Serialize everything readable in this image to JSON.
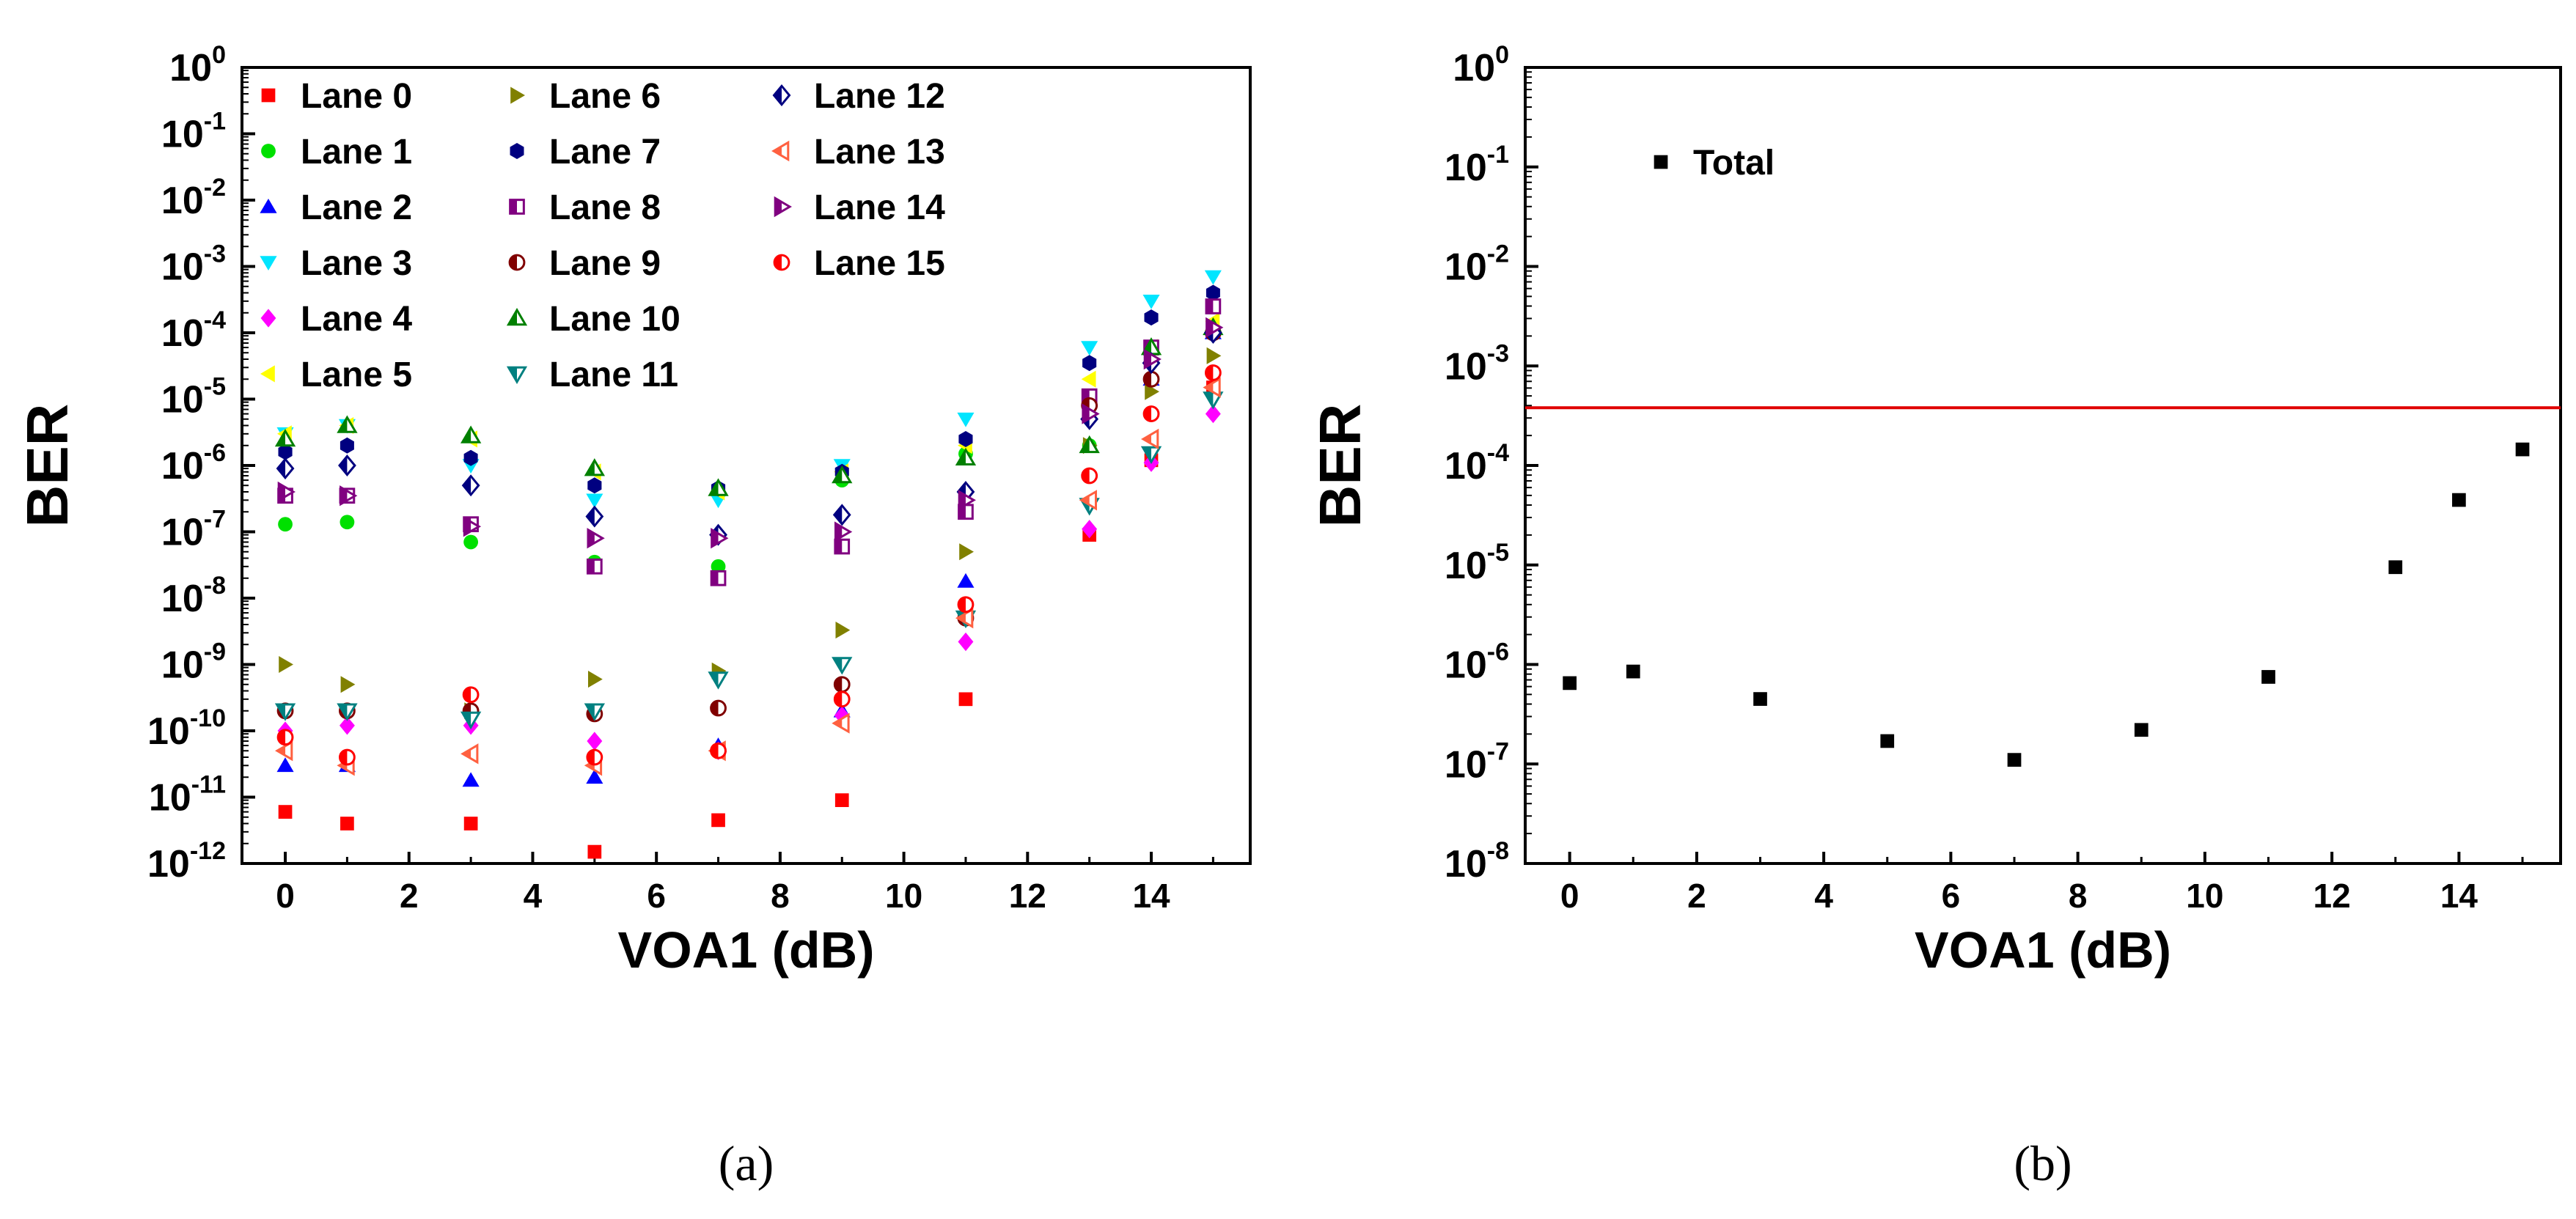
{
  "chart_data": [
    {
      "type": "scatter",
      "panel_label": "(a)",
      "xlabel": "VOA1 (dB)",
      "ylabel": "BER",
      "yscale": "log",
      "xlim": [
        -0.7,
        15.6
      ],
      "ylim_exp": [
        -12,
        0
      ],
      "xticks": [
        0,
        2,
        4,
        6,
        8,
        10,
        12,
        14
      ],
      "yticks_exp": [
        0,
        -1,
        -2,
        -3,
        -4,
        -5,
        -6,
        -7,
        -8,
        -9,
        -10,
        -11,
        -12
      ],
      "legend_location": "top-left, three columns",
      "x": [
        0,
        1,
        3,
        5,
        7,
        9,
        11,
        13,
        14,
        15
      ],
      "series": [
        {
          "name": "Lane 0",
          "marker": "square",
          "color": "#ff0000",
          "values": [
            6e-12,
            4e-12,
            4e-12,
            1.5e-12,
            4.5e-12,
            9e-12,
            3e-10,
            9e-08,
            1.2e-06,
            1.5e-05
          ]
        },
        {
          "name": "Lane 1",
          "marker": "circle",
          "color": "#00e000",
          "values": [
            1.3e-07,
            1.4e-07,
            7e-08,
            3.5e-08,
            3e-08,
            6e-07,
            1.5e-06,
            2e-06,
            2e-05,
            0.0001
          ]
        },
        {
          "name": "Lane 2",
          "marker": "triangle-up",
          "color": "#0000ff",
          "values": [
            3e-11,
            3e-11,
            1.8e-11,
            2e-11,
            6e-11,
            2e-10,
            1.8e-08,
            2e-06,
            2e-05,
            0.0001
          ]
        },
        {
          "name": "Lane 3",
          "marker": "triangle-down",
          "color": "#00e5ff",
          "values": [
            3e-06,
            4e-06,
            1e-06,
            3e-07,
            3e-07,
            1e-06,
            5e-06,
            6e-05,
            0.0003,
            0.0007
          ]
        },
        {
          "name": "Lane 4",
          "marker": "diamond",
          "color": "#ff00ff",
          "values": [
            1e-10,
            1.2e-10,
            1.2e-10,
            7e-11,
            5e-11,
            1.7e-10,
            2.2e-09,
            1.1e-07,
            1.1e-06,
            6e-06
          ]
        },
        {
          "name": "Lane 5",
          "marker": "triangle-left",
          "color": "#ffff00",
          "values": [
            3e-06,
            4e-06,
            2.5e-06,
            8e-07,
            4e-07,
            8e-07,
            2e-06,
            2e-05,
            6e-05,
            0.00015
          ]
        },
        {
          "name": "Lane 6",
          "marker": "triangle-right",
          "color": "#808000",
          "values": [
            1e-09,
            5e-10,
            2e-10,
            6e-10,
            8e-10,
            3.3e-09,
            5e-08,
            2e-06,
            1.3e-05,
            4.5e-05
          ]
        },
        {
          "name": "Lane 7",
          "marker": "hexagon",
          "color": "#000080",
          "values": [
            1.6e-06,
            2e-06,
            1.3e-06,
            5e-07,
            4.5e-07,
            8e-07,
            2.5e-06,
            3.5e-05,
            0.00017,
            0.0004
          ]
        },
        {
          "name": "Lane 8",
          "marker": "half-square",
          "color": "#800080",
          "values": [
            3.5e-07,
            3.5e-07,
            1.3e-07,
            3e-08,
            2e-08,
            6e-08,
            2e-07,
            1.1e-05,
            6e-05,
            0.00025
          ]
        },
        {
          "name": "Lane 9",
          "marker": "half-circle",
          "color": "#800000",
          "values": [
            2e-10,
            2e-10,
            2e-10,
            1.8e-10,
            2.2e-10,
            5e-10,
            5e-09,
            8e-06,
            2e-05,
            0.0001
          ]
        },
        {
          "name": "Lane 10",
          "marker": "triangle-up-half",
          "color": "#008000",
          "values": [
            2.5e-06,
            4e-06,
            2.8e-06,
            9e-07,
            4.5e-07,
            7e-07,
            1.3e-06,
            2e-06,
            6e-05,
            0.00012
          ]
        },
        {
          "name": "Lane 11",
          "marker": "triangle-down-half",
          "color": "#008080",
          "values": [
            2e-10,
            2e-10,
            1.5e-10,
            2e-10,
            6e-10,
            1e-09,
            5e-09,
            2.5e-07,
            1.5e-06,
            1e-05
          ]
        },
        {
          "name": "Lane 12",
          "marker": "diamond-half",
          "color": "#000080",
          "values": [
            9e-07,
            1e-06,
            5e-07,
            1.7e-07,
            9e-08,
            1.8e-07,
            4e-07,
            5e-06,
            3.5e-05,
            0.0001
          ]
        },
        {
          "name": "Lane 13",
          "marker": "triangle-left-half",
          "color": "#ff6040",
          "values": [
            5e-11,
            3e-11,
            4.5e-11,
            3e-11,
            5e-11,
            1.3e-10,
            5e-09,
            3e-07,
            2.5e-06,
            1.5e-05
          ]
        },
        {
          "name": "Lane 14",
          "marker": "triangle-right-half",
          "color": "#800080",
          "values": [
            4e-07,
            3.5e-07,
            1.2e-07,
            8e-08,
            8e-08,
            1e-07,
            3e-07,
            6e-06,
            4e-05,
            0.00012
          ]
        },
        {
          "name": "Lane 15",
          "marker": "circle-half",
          "color": "#ff0000",
          "values": [
            8e-11,
            4e-11,
            3.5e-10,
            4e-11,
            5e-11,
            3e-10,
            8e-09,
            7e-07,
            6e-06,
            2.5e-05
          ]
        }
      ]
    },
    {
      "type": "scatter",
      "panel_label": "(b)",
      "xlabel": "VOA1 (dB)",
      "ylabel": "BER",
      "yscale": "log",
      "xlim": [
        -0.7,
        15.6
      ],
      "ylim_exp": [
        -8,
        0
      ],
      "xticks": [
        0,
        2,
        4,
        6,
        8,
        10,
        12,
        14
      ],
      "yticks_exp": [
        0,
        -1,
        -2,
        -3,
        -4,
        -5,
        -6,
        -7,
        -8
      ],
      "legend_location": "top-left",
      "threshold": {
        "value": 0.00038,
        "color": "#e00000"
      },
      "x": [
        0,
        1,
        3,
        5,
        7,
        9,
        11,
        13,
        14,
        15
      ],
      "series": [
        {
          "name": "Total",
          "marker": "square",
          "color": "#000000",
          "values": [
            6.5e-07,
            8.5e-07,
            4.5e-07,
            1.7e-07,
            1.1e-07,
            2.2e-07,
            7.5e-07,
            9.5e-06,
            4.5e-05,
            0.000145
          ]
        }
      ]
    }
  ]
}
